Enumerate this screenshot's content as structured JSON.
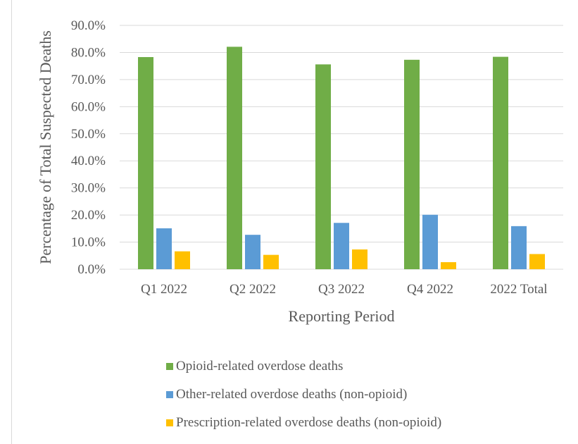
{
  "chart_data": {
    "type": "bar",
    "title": "",
    "xlabel": "Reporting Period",
    "ylabel": "Percentage of Total Suspected Deaths",
    "categories": [
      "Q1 2022",
      "Q2 2022",
      "Q3 2022",
      "Q4 2022",
      "2022 Total"
    ],
    "ylim": [
      0,
      90
    ],
    "yticks": [
      "0.0%",
      "10.0%",
      "20.0%",
      "30.0%",
      "40.0%",
      "50.0%",
      "60.0%",
      "70.0%",
      "80.0%",
      "90.0%"
    ],
    "grid": true,
    "legend_position": "bottom",
    "series": [
      {
        "name": "Opioid-related overdose deaths",
        "color": "#70ad47",
        "values": [
          78.3,
          82.1,
          75.6,
          77.3,
          78.4
        ]
      },
      {
        "name": "Other-related overdose deaths (non-opioid)",
        "color": "#5b9bd5",
        "values": [
          15.1,
          12.7,
          17.1,
          20.1,
          15.9
        ]
      },
      {
        "name": "Prescription-related overdose deaths (non-opioid)",
        "color": "#ffc000",
        "values": [
          6.6,
          5.3,
          7.3,
          2.6,
          5.6
        ]
      }
    ]
  }
}
